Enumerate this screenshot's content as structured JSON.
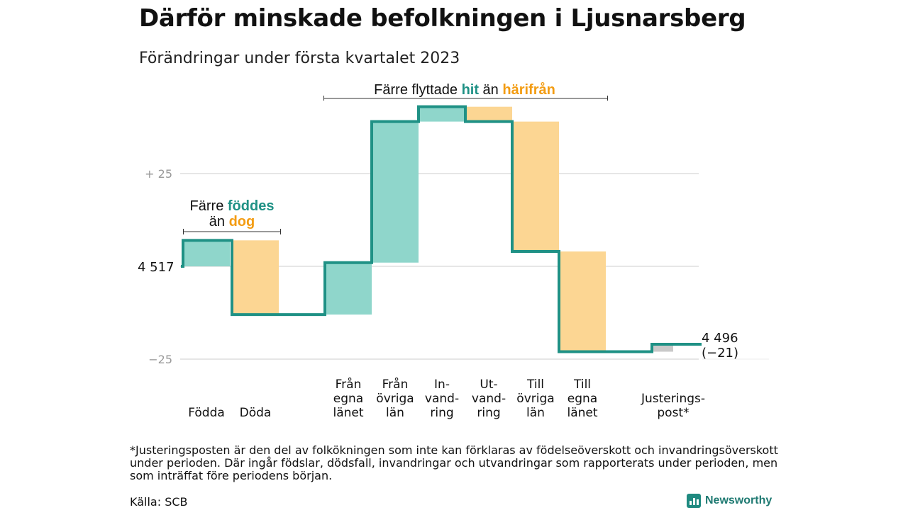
{
  "title": "Därför minskade befolkningen i Ljusnarsberg",
  "subtitle": "Förändringar under första kvartalet 2023",
  "annotations": {
    "births": {
      "line1": "Färre ",
      "line1_accent": "föddes",
      "line2": "än ",
      "line2_accent": "dog"
    },
    "moves": {
      "prefix": "Färre flyttade ",
      "accent_in": "hit",
      "mid": " än ",
      "accent_out": "härifrån"
    }
  },
  "start_label": "4 517",
  "end_label": {
    "line1": "4 496",
    "line2": "(−21)"
  },
  "footnote": "*Justeringsposten är den del av folkökningen som inte kan förklaras av födelseöverskott och invandringsöverskott under perioden. Där ingår födslar, dödsfall, invandringar och utvandringar som rapporterats under perioden, men som inträffat före periodens början.",
  "source": "Källa: SCB",
  "brand": "Newsworthy",
  "colors": {
    "positive": "#8fd6cb",
    "negative": "#fcd693",
    "adjustment": "#c9c9c9",
    "line": "#1f9185",
    "accent_teal": "#1f9185",
    "accent_orange": "#f39c12",
    "grid": "#dddddd"
  },
  "chart_data": {
    "type": "waterfall",
    "start_value": 4517,
    "end_value": 4496,
    "net_change": -21,
    "yticks": [
      {
        "value": 25,
        "label": "+ 25"
      },
      {
        "value": 0,
        "label": ""
      },
      {
        "value": -25,
        "label": "−25"
      }
    ],
    "ylim": [
      -25,
      44
    ],
    "steps": [
      {
        "label": [
          "Födda"
        ],
        "delta": 7,
        "kind": "positive"
      },
      {
        "label": [
          "Döda"
        ],
        "delta": -20,
        "kind": "negative"
      },
      {
        "label": [
          "Från",
          "egna",
          "länet"
        ],
        "delta": 14,
        "kind": "positive"
      },
      {
        "label": [
          "Från",
          "övriga",
          "län"
        ],
        "delta": 38,
        "kind": "positive"
      },
      {
        "label": [
          "In-",
          "vand-",
          "ring"
        ],
        "delta": 4,
        "kind": "positive"
      },
      {
        "label": [
          "Ut-",
          "vand-",
          "ring"
        ],
        "delta": -4,
        "kind": "negative"
      },
      {
        "label": [
          "Till",
          "övriga",
          "län"
        ],
        "delta": -35,
        "kind": "negative"
      },
      {
        "label": [
          "Till",
          "egna",
          "länet"
        ],
        "delta": -27,
        "kind": "negative"
      },
      {
        "label": [
          "Justerings-",
          "post*"
        ],
        "delta": 2,
        "kind": "adjustment"
      }
    ]
  }
}
